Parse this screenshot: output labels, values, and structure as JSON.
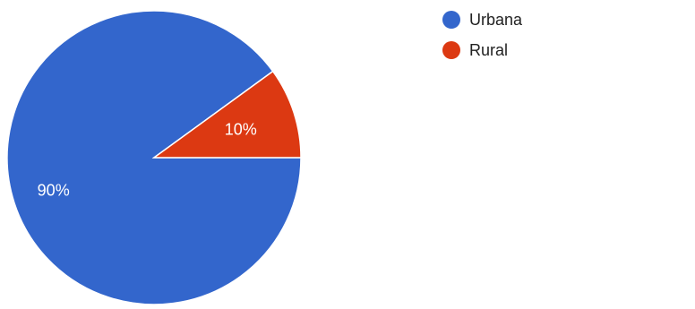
{
  "chart_data": {
    "type": "pie",
    "categories": [
      "Urbana",
      "Rural"
    ],
    "values": [
      90,
      10
    ],
    "labels": [
      "90%",
      "10%"
    ],
    "colors": [
      "#3366cc",
      "#dc3912"
    ],
    "legend_position": "top-right"
  }
}
